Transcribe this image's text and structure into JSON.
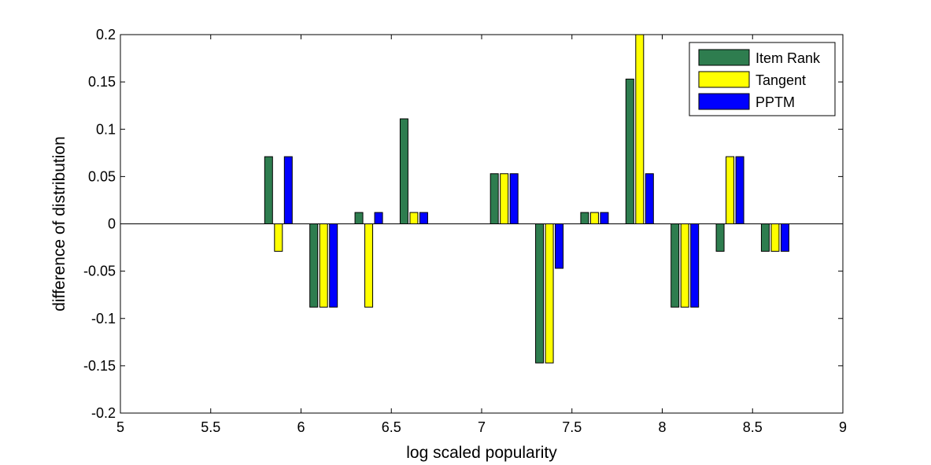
{
  "chart_data": {
    "type": "bar",
    "title": "",
    "xlabel": "log scaled popularity",
    "ylabel": "difference of distribution",
    "xlim": [
      5,
      9
    ],
    "ylim": [
      -0.2,
      0.2
    ],
    "xticks": [
      "5",
      "5.5",
      "6",
      "6.5",
      "7",
      "7.5",
      "8",
      "8.5",
      "9"
    ],
    "yticks": [
      "0.2",
      "0.15",
      "0.1",
      "0.05",
      "0",
      "-0.05",
      "-0.1",
      "-0.15",
      "-0.2"
    ],
    "xtick_values": [
      5,
      5.5,
      6,
      6.5,
      7,
      7.5,
      8,
      8.5,
      9
    ],
    "ytick_values": [
      0.2,
      0.15,
      0.1,
      0.05,
      0,
      -0.05,
      -0.1,
      -0.15,
      -0.2
    ],
    "x": [
      5.125,
      5.375,
      5.625,
      5.875,
      6.125,
      6.375,
      6.625,
      6.875,
      7.125,
      7.375,
      7.625,
      7.875,
      8.125,
      8.375,
      8.625,
      8.875
    ],
    "grid": false,
    "legend_position": "top-right",
    "series": [
      {
        "name": "Item Rank",
        "color": "#2e7d4f",
        "values": [
          0,
          0,
          0,
          0.071,
          -0.088,
          0.012,
          0.111,
          0,
          0.053,
          -0.147,
          0.012,
          0.153,
          -0.088,
          -0.029,
          -0.029,
          0
        ]
      },
      {
        "name": "Tangent",
        "color": "#ffff00",
        "values": [
          0,
          0,
          0,
          -0.029,
          -0.088,
          -0.088,
          0.012,
          0,
          0.053,
          -0.147,
          0.012,
          0.2,
          -0.088,
          0.071,
          -0.029,
          0
        ]
      },
      {
        "name": "PPTM",
        "color": "#0000ff",
        "values": [
          0,
          0,
          0,
          0.071,
          -0.088,
          0.012,
          0.012,
          0,
          0.053,
          -0.047,
          0.012,
          0.053,
          -0.088,
          0.071,
          -0.029,
          0
        ]
      }
    ]
  }
}
